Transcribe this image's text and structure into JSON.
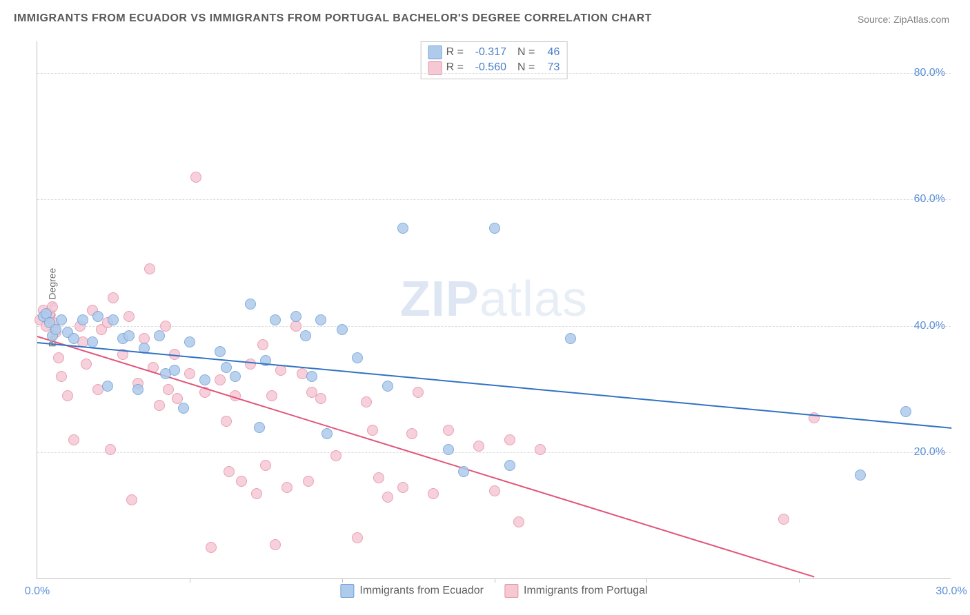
{
  "title": "IMMIGRANTS FROM ECUADOR VS IMMIGRANTS FROM PORTUGAL BACHELOR'S DEGREE CORRELATION CHART",
  "source": "Source: ZipAtlas.com",
  "y_axis_label": "Bachelor's Degree",
  "watermark_a": "ZIP",
  "watermark_b": "atlas",
  "chart": {
    "type": "scatter",
    "xlim": [
      0,
      30
    ],
    "ylim": [
      0,
      85
    ],
    "x_ticks": [
      0,
      5,
      10,
      15,
      20,
      25,
      30
    ],
    "x_tick_labels": {
      "0": "0.0%",
      "30": "30.0%"
    },
    "y_ticks": [
      20,
      40,
      60,
      80
    ],
    "y_tick_labels": {
      "20": "20.0%",
      "40": "40.0%",
      "60": "60.0%",
      "80": "80.0%"
    },
    "grid_color": "#dcdcdc",
    "background_color": "#ffffff",
    "axis_color": "#c0c0c0",
    "tick_label_color": "#5b8fd6",
    "marker_radius": 8,
    "marker_stroke_width": 1.5,
    "trend_line_width": 2
  },
  "series": {
    "ecuador": {
      "label": "Immigrants from Ecuador",
      "fill": "#aecbeb",
      "stroke": "#6f9fd8",
      "line_color": "#3172c4",
      "R_label": "R =",
      "R": "-0.317",
      "N_label": "N =",
      "N": "46",
      "trend": {
        "x1": 0,
        "y1": 37.5,
        "x2": 30,
        "y2": 24
      },
      "points": [
        [
          0.2,
          41.5
        ],
        [
          0.3,
          42.0
        ],
        [
          0.4,
          40.5
        ],
        [
          0.5,
          38.5
        ],
        [
          0.6,
          39.5
        ],
        [
          0.8,
          41.0
        ],
        [
          1.0,
          39.0
        ],
        [
          1.2,
          38.0
        ],
        [
          1.5,
          41.0
        ],
        [
          1.8,
          37.5
        ],
        [
          2.0,
          41.5
        ],
        [
          2.3,
          30.5
        ],
        [
          2.5,
          41.0
        ],
        [
          2.8,
          38.0
        ],
        [
          3.0,
          38.5
        ],
        [
          3.3,
          30.0
        ],
        [
          3.5,
          36.5
        ],
        [
          4.0,
          38.5
        ],
        [
          4.2,
          32.5
        ],
        [
          4.5,
          33.0
        ],
        [
          4.8,
          27.0
        ],
        [
          5.0,
          37.5
        ],
        [
          5.5,
          31.5
        ],
        [
          6.0,
          36.0
        ],
        [
          6.2,
          33.5
        ],
        [
          6.5,
          32.0
        ],
        [
          7.0,
          43.5
        ],
        [
          7.3,
          24.0
        ],
        [
          7.5,
          34.5
        ],
        [
          7.8,
          41.0
        ],
        [
          8.5,
          41.5
        ],
        [
          8.8,
          38.5
        ],
        [
          9.0,
          32.0
        ],
        [
          9.3,
          41.0
        ],
        [
          9.5,
          23.0
        ],
        [
          10.0,
          39.5
        ],
        [
          10.5,
          35.0
        ],
        [
          11.5,
          30.5
        ],
        [
          12.0,
          55.5
        ],
        [
          13.5,
          20.5
        ],
        [
          14.0,
          17.0
        ],
        [
          15.0,
          55.5
        ],
        [
          15.5,
          18.0
        ],
        [
          17.5,
          38.0
        ],
        [
          27.0,
          16.5
        ],
        [
          28.5,
          26.5
        ]
      ]
    },
    "portugal": {
      "label": "Immigrants from Portugal",
      "fill": "#f5c8d4",
      "stroke": "#e890a8",
      "line_color": "#e25578",
      "R_label": "R =",
      "R": "-0.560",
      "N_label": "N =",
      "N": "73",
      "trend": {
        "x1": 0,
        "y1": 38.5,
        "x2": 25.5,
        "y2": 0.5
      },
      "points": [
        [
          0.1,
          41.0
        ],
        [
          0.2,
          42.5
        ],
        [
          0.3,
          40.0
        ],
        [
          0.35,
          41.5
        ],
        [
          0.4,
          42.0
        ],
        [
          0.5,
          43.0
        ],
        [
          0.55,
          40.5
        ],
        [
          0.6,
          39.0
        ],
        [
          0.7,
          35.0
        ],
        [
          0.8,
          32.0
        ],
        [
          1.0,
          29.0
        ],
        [
          1.2,
          22.0
        ],
        [
          1.4,
          40.0
        ],
        [
          1.5,
          37.5
        ],
        [
          1.6,
          34.0
        ],
        [
          1.8,
          42.5
        ],
        [
          2.0,
          30.0
        ],
        [
          2.1,
          39.5
        ],
        [
          2.3,
          40.5
        ],
        [
          2.4,
          20.5
        ],
        [
          2.5,
          44.5
        ],
        [
          2.8,
          35.5
        ],
        [
          3.0,
          41.5
        ],
        [
          3.1,
          12.5
        ],
        [
          3.3,
          31.0
        ],
        [
          3.5,
          38.0
        ],
        [
          3.7,
          49.0
        ],
        [
          3.8,
          33.5
        ],
        [
          4.0,
          27.5
        ],
        [
          4.2,
          40.0
        ],
        [
          4.3,
          30.0
        ],
        [
          4.5,
          35.5
        ],
        [
          4.6,
          28.5
        ],
        [
          5.0,
          32.5
        ],
        [
          5.2,
          63.5
        ],
        [
          5.5,
          29.5
        ],
        [
          5.7,
          5.0
        ],
        [
          6.0,
          31.5
        ],
        [
          6.2,
          25.0
        ],
        [
          6.3,
          17.0
        ],
        [
          6.5,
          29.0
        ],
        [
          6.7,
          15.5
        ],
        [
          7.0,
          34.0
        ],
        [
          7.2,
          13.5
        ],
        [
          7.4,
          37.0
        ],
        [
          7.5,
          18.0
        ],
        [
          7.7,
          29.0
        ],
        [
          7.8,
          5.5
        ],
        [
          8.0,
          33.0
        ],
        [
          8.2,
          14.5
        ],
        [
          8.5,
          40.0
        ],
        [
          8.7,
          32.5
        ],
        [
          8.9,
          15.5
        ],
        [
          9.0,
          29.5
        ],
        [
          9.3,
          28.5
        ],
        [
          9.8,
          19.5
        ],
        [
          10.5,
          6.5
        ],
        [
          10.8,
          28.0
        ],
        [
          11.0,
          23.5
        ],
        [
          11.2,
          16.0
        ],
        [
          11.5,
          13.0
        ],
        [
          12.0,
          14.5
        ],
        [
          12.3,
          23.0
        ],
        [
          12.5,
          29.5
        ],
        [
          13.0,
          13.5
        ],
        [
          13.5,
          23.5
        ],
        [
          14.5,
          21.0
        ],
        [
          15.0,
          14.0
        ],
        [
          15.5,
          22.0
        ],
        [
          15.8,
          9.0
        ],
        [
          16.5,
          20.5
        ],
        [
          24.5,
          9.5
        ],
        [
          25.5,
          25.5
        ]
      ]
    }
  }
}
